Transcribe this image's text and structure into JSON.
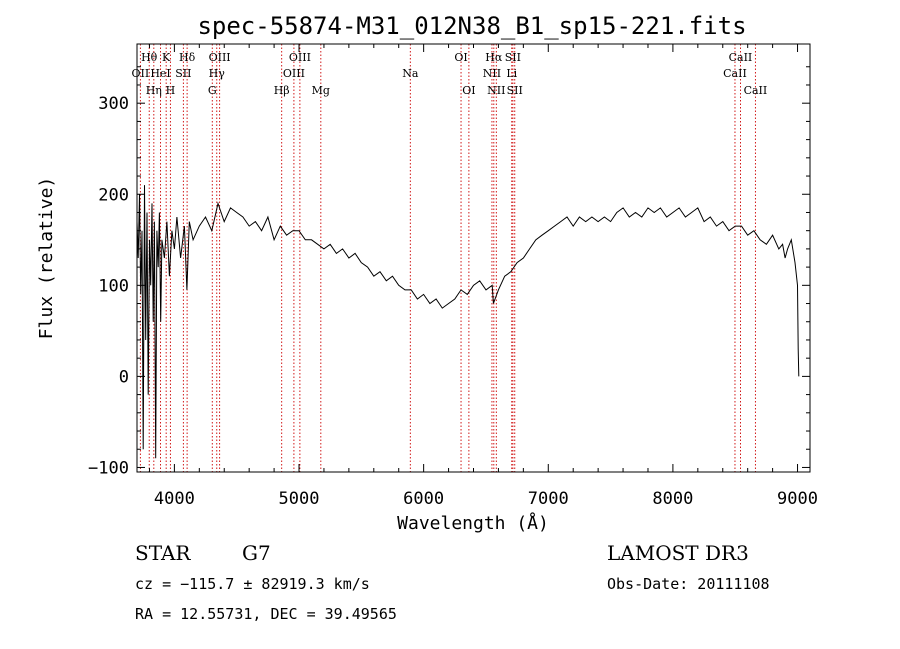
{
  "chart_data": {
    "type": "line",
    "title": "spec-55874-M31_012N38_B1_sp15-221.fits",
    "xlabel": "Wavelength (Å)",
    "ylabel": "Flux (relative)",
    "xlim": [
      3700,
      9100
    ],
    "ylim": [
      -105,
      365
    ],
    "xticks": [
      4000,
      5000,
      6000,
      7000,
      8000,
      9000
    ],
    "yticks": [
      -100,
      0,
      100,
      200,
      300
    ],
    "series": [
      {
        "name": "flux",
        "x": [
          3700,
          3710,
          3720,
          3730,
          3740,
          3750,
          3760,
          3770,
          3780,
          3790,
          3800,
          3810,
          3820,
          3830,
          3840,
          3850,
          3860,
          3870,
          3880,
          3890,
          3900,
          3920,
          3940,
          3960,
          3980,
          4000,
          4020,
          4050,
          4080,
          4100,
          4120,
          4150,
          4200,
          4250,
          4300,
          4350,
          4400,
          4450,
          4500,
          4550,
          4600,
          4650,
          4700,
          4750,
          4800,
          4850,
          4900,
          4950,
          5000,
          5050,
          5100,
          5150,
          5200,
          5250,
          5300,
          5350,
          5400,
          5450,
          5500,
          5550,
          5600,
          5650,
          5700,
          5750,
          5800,
          5850,
          5900,
          5950,
          6000,
          6050,
          6100,
          6150,
          6200,
          6250,
          6300,
          6350,
          6400,
          6450,
          6500,
          6550,
          6560,
          6600,
          6650,
          6700,
          6750,
          6800,
          6850,
          6900,
          6950,
          7000,
          7050,
          7100,
          7150,
          7200,
          7250,
          7300,
          7350,
          7400,
          7450,
          7500,
          7550,
          7600,
          7650,
          7700,
          7750,
          7800,
          7850,
          7900,
          7950,
          8000,
          8050,
          8100,
          8150,
          8200,
          8250,
          8300,
          8350,
          8400,
          8450,
          8500,
          8550,
          8600,
          8650,
          8700,
          8750,
          8800,
          8850,
          8880,
          8900,
          8920,
          8950,
          8980,
          9000,
          9005,
          9010
        ],
        "y": [
          170,
          130,
          200,
          90,
          160,
          -80,
          210,
          40,
          180,
          -20,
          150,
          100,
          190,
          60,
          170,
          -90,
          160,
          120,
          180,
          60,
          150,
          130,
          170,
          110,
          160,
          140,
          175,
          130,
          165,
          95,
          170,
          150,
          165,
          175,
          160,
          190,
          170,
          185,
          180,
          175,
          165,
          170,
          160,
          175,
          150,
          165,
          155,
          160,
          160,
          150,
          150,
          145,
          140,
          145,
          135,
          140,
          130,
          135,
          125,
          120,
          110,
          115,
          105,
          110,
          100,
          95,
          95,
          85,
          90,
          80,
          85,
          75,
          80,
          85,
          95,
          90,
          100,
          105,
          95,
          100,
          80,
          95,
          110,
          115,
          125,
          130,
          140,
          150,
          155,
          160,
          165,
          170,
          175,
          165,
          175,
          170,
          175,
          170,
          175,
          170,
          180,
          185,
          175,
          180,
          175,
          185,
          180,
          185,
          175,
          180,
          185,
          175,
          180,
          185,
          170,
          175,
          165,
          170,
          160,
          165,
          165,
          155,
          160,
          150,
          145,
          155,
          140,
          145,
          130,
          140,
          150,
          125,
          100,
          30,
          0
        ]
      }
    ],
    "spectral_lines": [
      {
        "name": "OII",
        "wave": 3727,
        "row": 2
      },
      {
        "name": "Hθ",
        "wave": 3798,
        "row": 1
      },
      {
        "name": "Hη",
        "wave": 3835,
        "row": 3
      },
      {
        "name": "HeI",
        "wave": 3889,
        "row": 2
      },
      {
        "name": "K",
        "wave": 3934,
        "row": 1
      },
      {
        "name": "H",
        "wave": 3968,
        "row": 3
      },
      {
        "name": "SII",
        "wave": 4072,
        "row": 2
      },
      {
        "name": "Hδ",
        "wave": 4102,
        "row": 1
      },
      {
        "name": "G",
        "wave": 4304,
        "row": 3
      },
      {
        "name": "Hγ",
        "wave": 4340,
        "row": 2
      },
      {
        "name": "OIII",
        "wave": 4363,
        "row": 1
      },
      {
        "name": "Hβ",
        "wave": 4861,
        "row": 3
      },
      {
        "name": "OIII",
        "wave": 4959,
        "row": 2
      },
      {
        "name": "OIII",
        "wave": 5007,
        "row": 1
      },
      {
        "name": "Mg",
        "wave": 5175,
        "row": 3
      },
      {
        "name": "Na",
        "wave": 5893,
        "row": 2
      },
      {
        "name": "OI",
        "wave": 6300,
        "row": 1
      },
      {
        "name": "OI",
        "wave": 6363,
        "row": 3
      },
      {
        "name": "NII",
        "wave": 6548,
        "row": 2
      },
      {
        "name": "Hα",
        "wave": 6563,
        "row": 1
      },
      {
        "name": "NII",
        "wave": 6583,
        "row": 3
      },
      {
        "name": "Li",
        "wave": 6707,
        "row": 2
      },
      {
        "name": "SII",
        "wave": 6716,
        "row": 1
      },
      {
        "name": "SII",
        "wave": 6731,
        "row": 3
      },
      {
        "name": "CaII",
        "wave": 8498,
        "row": 2
      },
      {
        "name": "CaII",
        "wave": 8542,
        "row": 1
      },
      {
        "name": "CaII",
        "wave": 8662,
        "row": 3
      }
    ]
  },
  "colors": {
    "line_marker": "#cc0000",
    "spectrum": "#000000",
    "axis": "#000000"
  },
  "info": {
    "class_label": "STAR",
    "subclass": "G7",
    "survey": "LAMOST DR3",
    "cz": "cz = −115.7 ± 82919.3 km/s",
    "obs_date": "Obs-Date: 20111108",
    "coords": "RA =  12.55731, DEC =  39.49565"
  }
}
